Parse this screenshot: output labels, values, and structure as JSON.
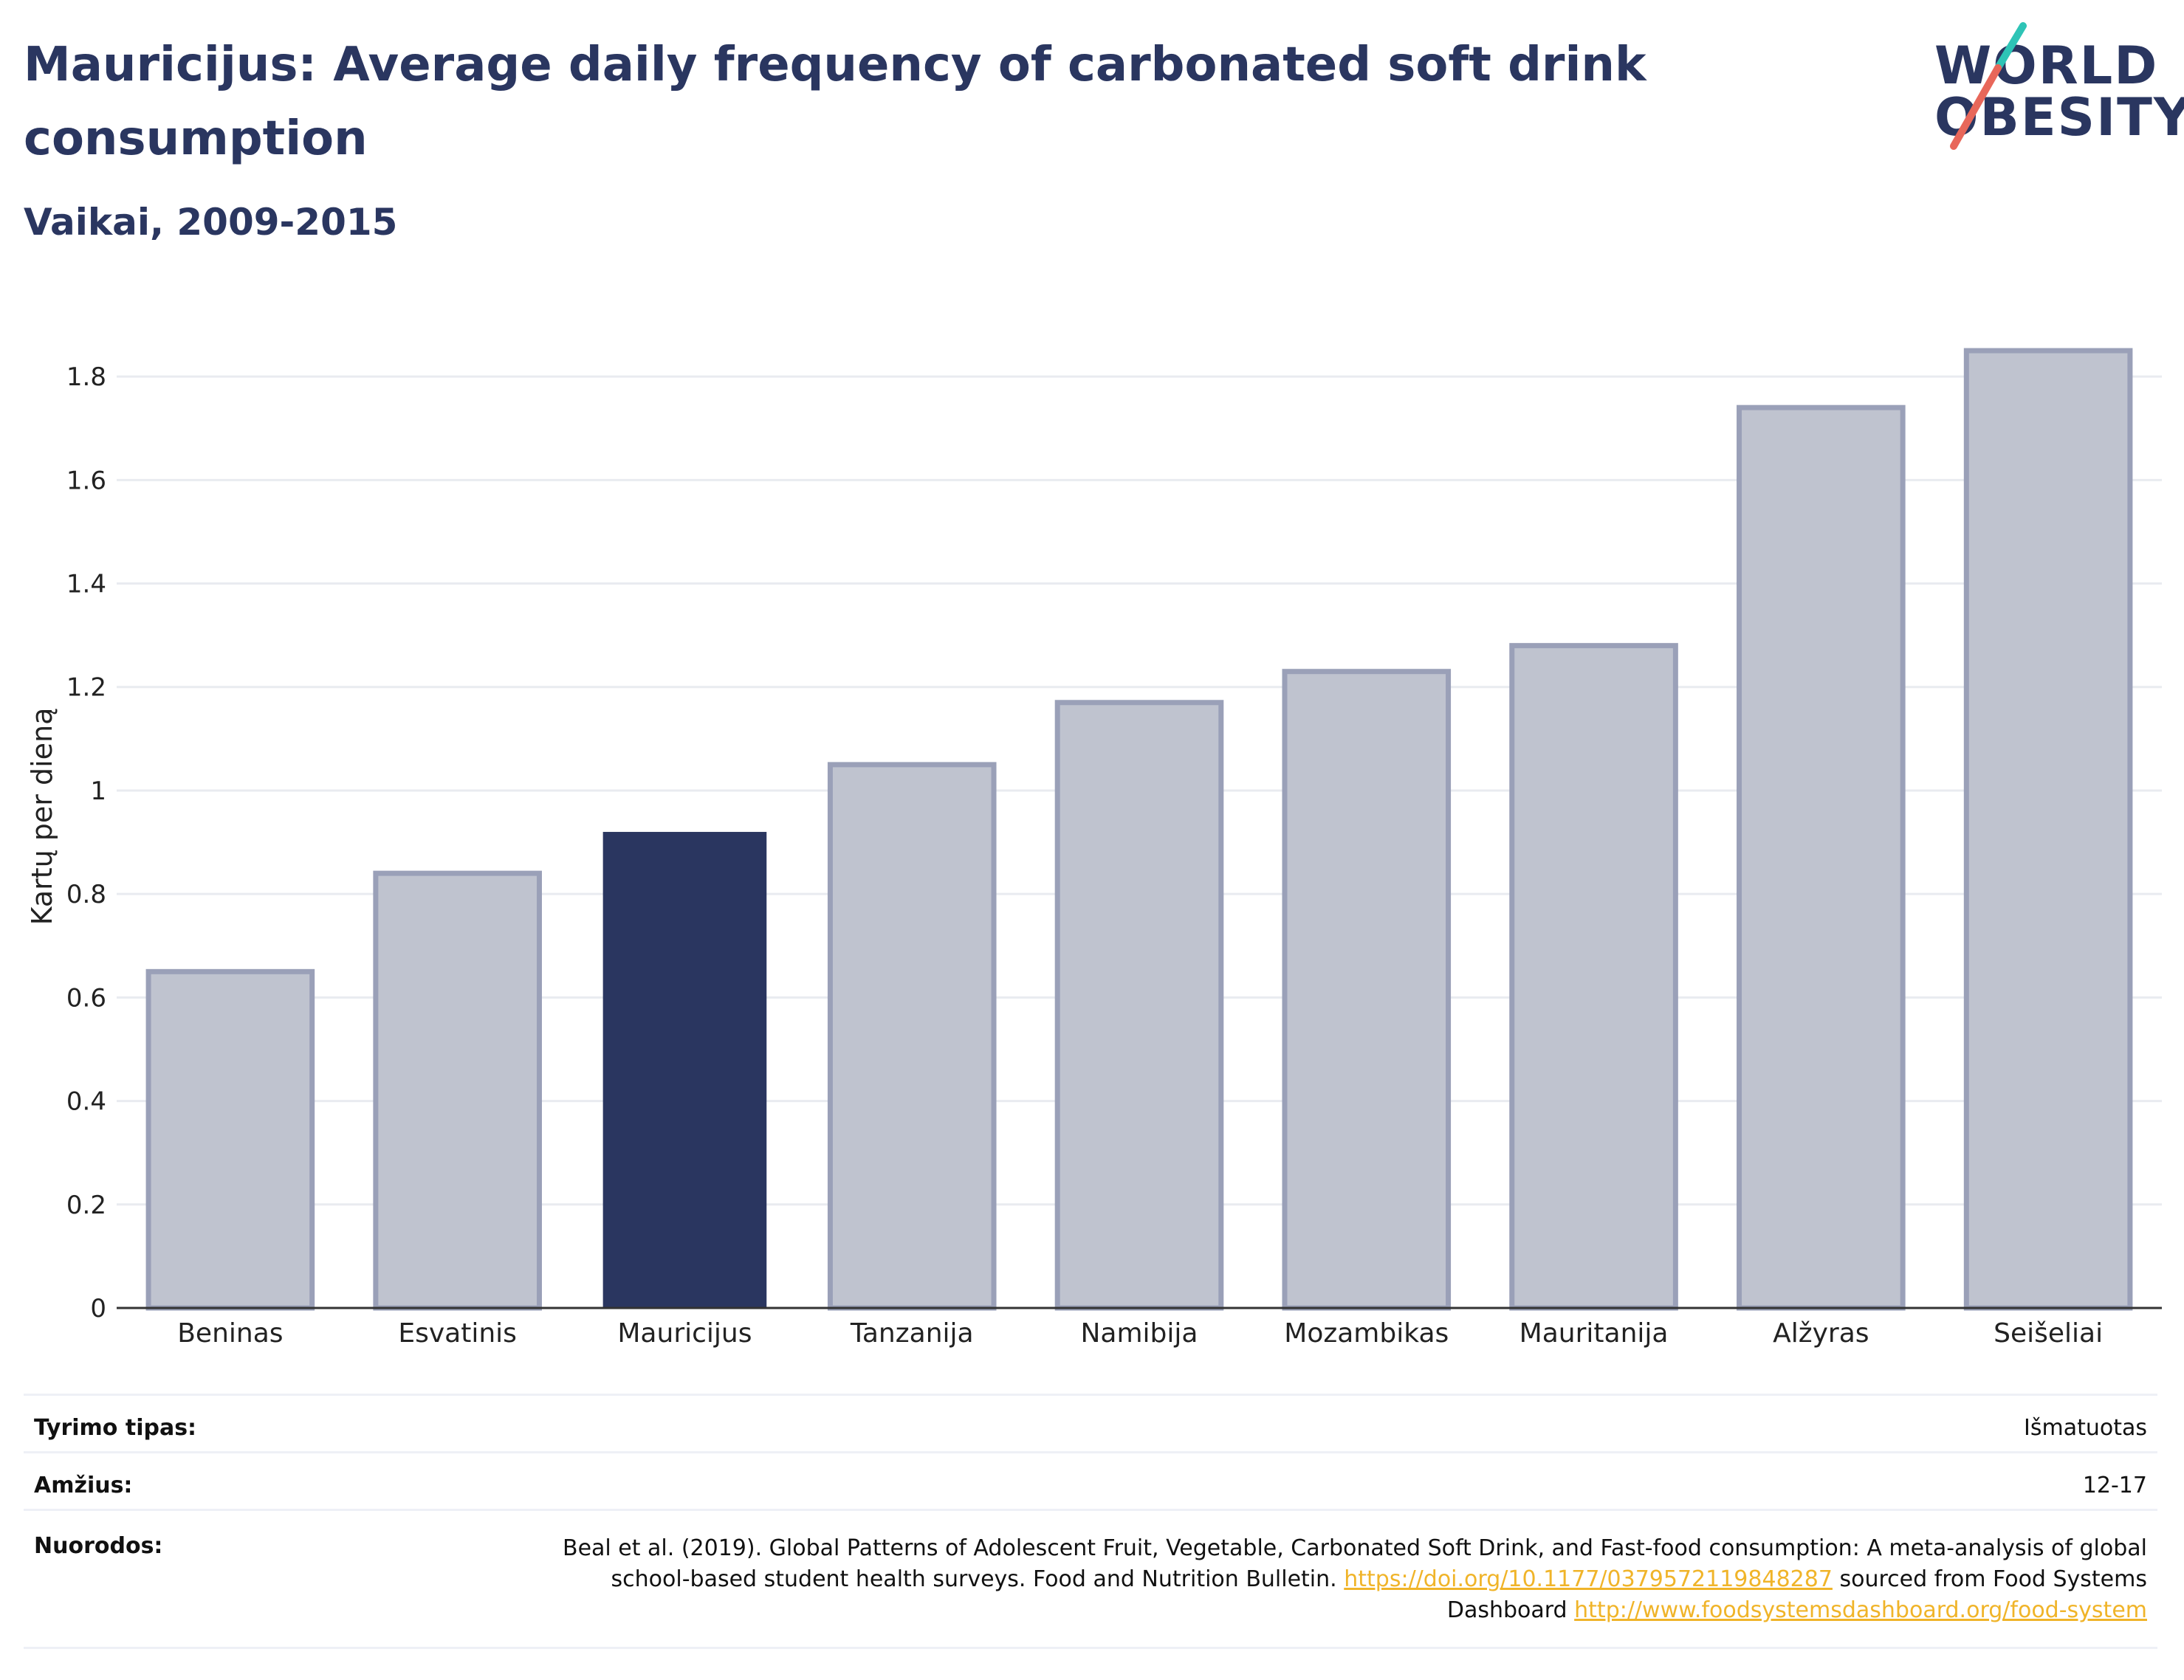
{
  "header": {
    "title": "Mauricijus: Average daily frequency of carbonated soft drink consumption",
    "subtitle": "Vaikai, 2009-2015"
  },
  "logo": {
    "line1": "WORLD",
    "line2": "OBESITY",
    "colors": {
      "slash_teal": "#2ec4b6",
      "slash_red": "#e8675a",
      "text": "#2a3660"
    }
  },
  "colors": {
    "highlight_bar": "#2a3660",
    "other_bar_fill": "#bfc3cf",
    "other_bar_stroke": "#9aa0b8",
    "grid": "#e9ebf0",
    "axis": "#333333",
    "link": "#f0b429"
  },
  "chart_data": {
    "type": "bar",
    "categories": [
      "Beninas",
      "Esvatinis",
      "Mauricijus",
      "Tanzanija",
      "Namibija",
      "Mozambikas",
      "Mauritanija",
      "Alžyras",
      "Seišeliai"
    ],
    "values": [
      0.65,
      0.84,
      0.92,
      1.05,
      1.17,
      1.23,
      1.28,
      1.74,
      1.85
    ],
    "highlight": "Mauricijus",
    "title": "Mauricijus: Average daily frequency of carbonated soft drink consumption",
    "subtitle": "Vaikai, 2009-2015",
    "xlabel": "",
    "ylabel": "Kartų per dieną",
    "ylim": [
      0,
      1.9
    ],
    "yticks": [
      0,
      0.2,
      0.4,
      0.6,
      0.8,
      1,
      1.2,
      1.4,
      1.6,
      1.8
    ],
    "ytick_labels": [
      "0",
      "0.2",
      "0.4",
      "0.6",
      "0.8",
      "1",
      "1.2",
      "1.4",
      "1.6",
      "1.8"
    ],
    "grid": true,
    "legend": "none"
  },
  "info": {
    "survey_label": "Tyrimo tipas:",
    "survey_value": "Išmatuotas",
    "age_label": "Amžius:",
    "age_value": "12-17",
    "refs_label": "Nuorodos:",
    "refs_text1": "Beal et al. (2019). Global Patterns of Adolescent Fruit, Vegetable, Carbonated Soft Drink, and Fast-food consumption: A meta-analysis of global school-based student health surveys. Food and Nutrition Bulletin.",
    "refs_link1": "https://doi.org/10.1177/0379572119848287",
    "refs_text2": "sourced from Food Systems Dashboard",
    "refs_link2": "http://www.foodsystemsdashboard.org/food-system"
  }
}
